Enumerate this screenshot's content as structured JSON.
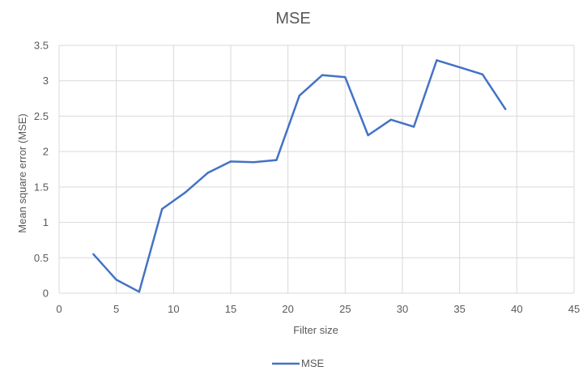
{
  "chart_data": {
    "type": "line",
    "title": "MSE",
    "xlabel": "Filter size",
    "ylabel": "Mean square error (MSE)",
    "xlim": [
      0,
      45
    ],
    "ylim": [
      0,
      3.5
    ],
    "x_ticks": [
      0,
      5,
      10,
      15,
      20,
      25,
      30,
      35,
      40,
      45
    ],
    "y_ticks": [
      0,
      0.5,
      1,
      1.5,
      2,
      2.5,
      3,
      3.5
    ],
    "y_tick_labels": [
      "0",
      "0.5",
      "1",
      "1.5",
      "2",
      "2.5",
      "3",
      "3.5"
    ],
    "grid": true,
    "legend_position": "bottom",
    "series": [
      {
        "name": "MSE",
        "color": "#4472c4",
        "x": [
          3,
          5,
          7,
          9,
          11,
          13,
          15,
          17,
          19,
          21,
          23,
          25,
          27,
          29,
          31,
          33,
          35,
          37,
          39
        ],
        "y": [
          0.55,
          0.19,
          0.02,
          1.19,
          1.42,
          1.7,
          1.86,
          1.85,
          1.88,
          2.79,
          3.08,
          3.05,
          2.23,
          2.45,
          2.35,
          3.29,
          3.19,
          3.09,
          2.6
        ]
      }
    ]
  }
}
